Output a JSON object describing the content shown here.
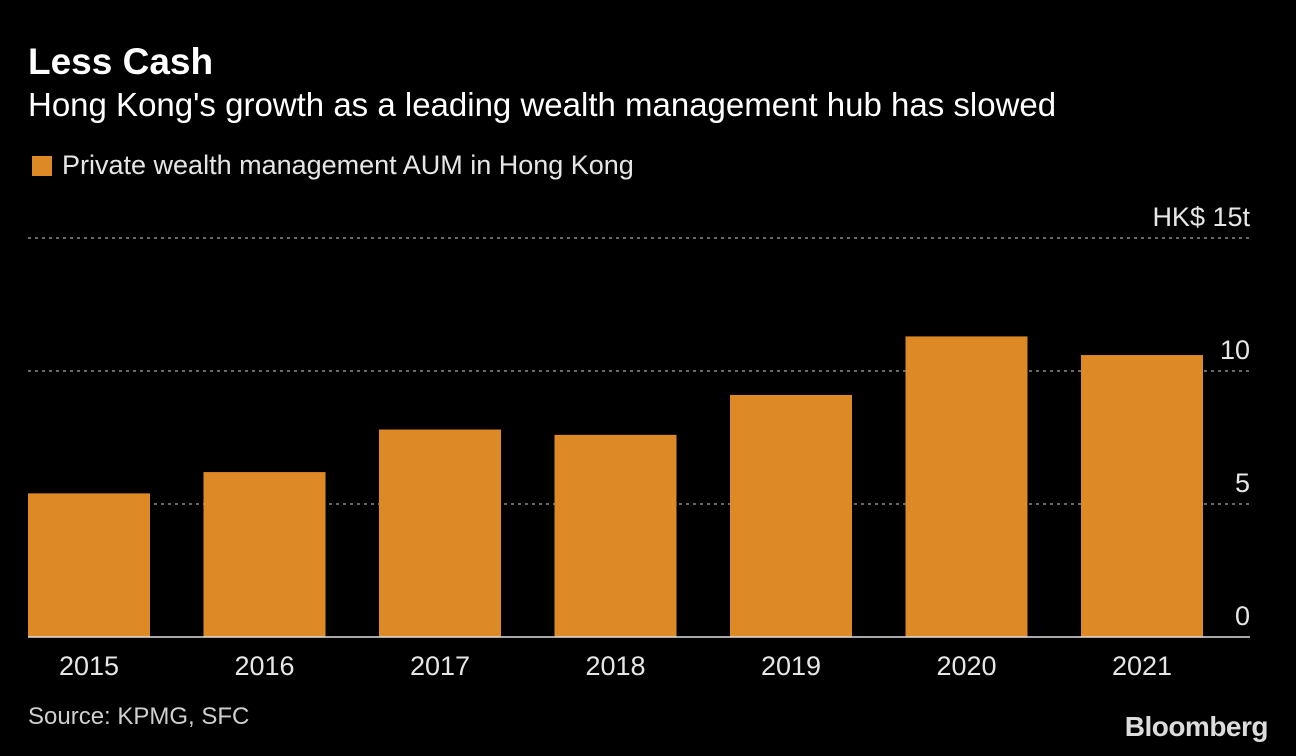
{
  "header": {
    "title": "Less Cash",
    "subtitle": "Hong Kong's growth as a leading wealth management hub has slowed"
  },
  "footer": {
    "source": "Source: KPMG, SFC",
    "brand": "Bloomberg"
  },
  "colors": {
    "bar": "#dd8a26",
    "background": "#000000",
    "grid": "#8a8a8a"
  },
  "chart_data": {
    "type": "bar",
    "title": "Less Cash",
    "subtitle": "Hong Kong's growth as a leading wealth management hub has slowed",
    "legend": [
      {
        "name": "Private wealth management AUM in Hong Kong",
        "color": "#dd8a26"
      }
    ],
    "legend_position": "top-left",
    "categories": [
      "2015",
      "2016",
      "2017",
      "2018",
      "2019",
      "2020",
      "2021"
    ],
    "series": [
      {
        "name": "Private wealth management AUM in Hong Kong",
        "values": [
          5.4,
          6.2,
          7.8,
          7.6,
          9.1,
          11.3,
          10.6
        ]
      }
    ],
    "ylim": [
      0,
      15
    ],
    "yticks": [
      0,
      5,
      10,
      15
    ],
    "ytick_labels": [
      "0",
      "5",
      "10",
      "HK$ 15t"
    ],
    "y_axis_position": "right",
    "grid": true,
    "xlabel": "",
    "ylabel": "",
    "source": "Source: KPMG, SFC"
  }
}
